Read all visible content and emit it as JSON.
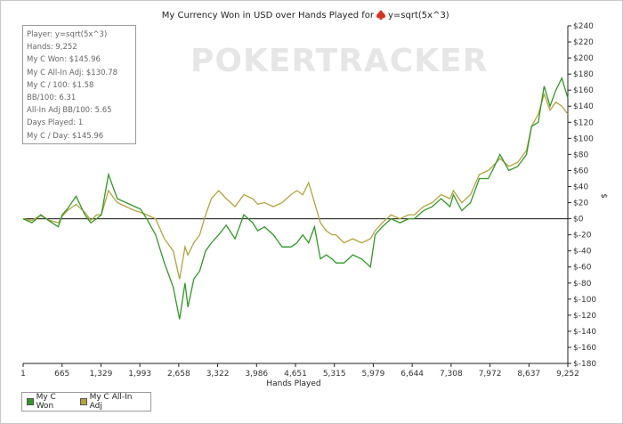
{
  "chart_data": {
    "type": "line",
    "title": "My Currency Won in USD over Hands Played for",
    "title_player": "y=sqrt(5x^3)",
    "watermark": "POKERTRACKER",
    "xlabel": "Hands Played",
    "ylabel": "$",
    "xlim": [
      1,
      9252
    ],
    "ylim": [
      -180,
      240
    ],
    "x_ticks": [
      "1",
      "665",
      "1,329",
      "1,993",
      "2,658",
      "3,322",
      "3,986",
      "4,651",
      "5,315",
      "5,979",
      "6,644",
      "7,308",
      "7,972",
      "8,637",
      "9,252"
    ],
    "y_ticks": [
      "$240",
      "$220",
      "$200",
      "$180",
      "$160",
      "$140",
      "$120",
      "$100",
      "$80",
      "$60",
      "$40",
      "$20",
      "$0",
      "$-20",
      "$-40",
      "$-60",
      "$-80",
      "$-100",
      "$-120",
      "$-140",
      "$-160",
      "$-180"
    ],
    "y_tick_values": [
      240,
      220,
      200,
      180,
      160,
      140,
      120,
      100,
      80,
      60,
      40,
      20,
      0,
      -20,
      -40,
      -60,
      -80,
      -100,
      -120,
      -140,
      -160,
      -180
    ],
    "legend_position": "bottom-left",
    "grid": false,
    "series": [
      {
        "name": "My C Won",
        "color": "#2e9a22",
        "x": [
          1,
          150,
          300,
          450,
          600,
          665,
          750,
          900,
          1050,
          1150,
          1250,
          1329,
          1450,
          1600,
          1750,
          1900,
          1993,
          2100,
          2250,
          2400,
          2550,
          2658,
          2750,
          2800,
          2900,
          3000,
          3100,
          3200,
          3322,
          3450,
          3600,
          3750,
          3900,
          3986,
          4100,
          4250,
          4400,
          4550,
          4651,
          4750,
          4850,
          4950,
          5050,
          5150,
          5250,
          5315,
          5450,
          5600,
          5750,
          5900,
          5979,
          6100,
          6250,
          6400,
          6550,
          6644,
          6800,
          6950,
          7100,
          7250,
          7308,
          7450,
          7600,
          7750,
          7900,
          7972,
          8100,
          8250,
          8400,
          8550,
          8637,
          8750,
          8850,
          8950,
          9050,
          9150,
          9252
        ],
        "y": [
          0,
          -5,
          5,
          -3,
          -10,
          5,
          12,
          28,
          5,
          -5,
          0,
          5,
          55,
          25,
          20,
          15,
          12,
          0,
          -20,
          -55,
          -85,
          -125,
          -80,
          -110,
          -75,
          -65,
          -40,
          -30,
          -20,
          -8,
          -25,
          5,
          -5,
          -15,
          -10,
          -20,
          -35,
          -35,
          -30,
          -20,
          -30,
          -10,
          -50,
          -45,
          -50,
          -55,
          -55,
          -45,
          -50,
          -60,
          -20,
          -10,
          0,
          -5,
          0,
          0,
          10,
          15,
          25,
          15,
          30,
          10,
          20,
          50,
          50,
          60,
          80,
          60,
          65,
          80,
          115,
          120,
          165,
          140,
          160,
          175,
          150
        ]
      },
      {
        "name": "My C All-In Adj",
        "color": "#b4a33a",
        "x": [
          1,
          150,
          300,
          450,
          600,
          665,
          750,
          900,
          1050,
          1150,
          1250,
          1329,
          1450,
          1600,
          1750,
          1900,
          1993,
          2100,
          2250,
          2400,
          2550,
          2658,
          2750,
          2800,
          2900,
          3000,
          3100,
          3200,
          3322,
          3450,
          3600,
          3750,
          3900,
          3986,
          4100,
          4250,
          4400,
          4550,
          4651,
          4750,
          4850,
          4950,
          5050,
          5150,
          5250,
          5315,
          5450,
          5600,
          5750,
          5900,
          5979,
          6100,
          6250,
          6400,
          6550,
          6644,
          6800,
          6950,
          7100,
          7250,
          7308,
          7450,
          7600,
          7750,
          7900,
          7972,
          8100,
          8250,
          8400,
          8550,
          8637,
          8750,
          8850,
          8950,
          9050,
          9150,
          9252
        ],
        "y": [
          0,
          -2,
          4,
          -2,
          -5,
          3,
          10,
          18,
          8,
          -2,
          5,
          5,
          35,
          20,
          15,
          10,
          8,
          5,
          0,
          -25,
          -40,
          -75,
          -35,
          -45,
          -30,
          -20,
          5,
          25,
          35,
          25,
          15,
          30,
          25,
          18,
          20,
          15,
          20,
          30,
          35,
          30,
          45,
          20,
          -5,
          -15,
          -20,
          -20,
          -30,
          -25,
          -30,
          -25,
          -15,
          -5,
          5,
          0,
          5,
          5,
          15,
          20,
          30,
          25,
          35,
          20,
          30,
          55,
          60,
          65,
          75,
          65,
          70,
          85,
          115,
          130,
          155,
          135,
          145,
          140,
          130
        ]
      }
    ]
  },
  "stats": {
    "player": "Player: y=sqrt(5x^3)",
    "hands": "Hands: 9,252",
    "won": "My C Won: $145.96",
    "allin_adj": "My C All-In Adj: $130.78",
    "per100": "My C / 100: $1.58",
    "bb100": "BB/100: 6.31",
    "allin_bb100": "All-In Adj BB/100: 5.65",
    "days": "Days Played: 1",
    "per_day": "My C / Day: $145.96"
  },
  "legend": {
    "won_label": "My C Won",
    "allin_label": "My C All-In Adj"
  }
}
